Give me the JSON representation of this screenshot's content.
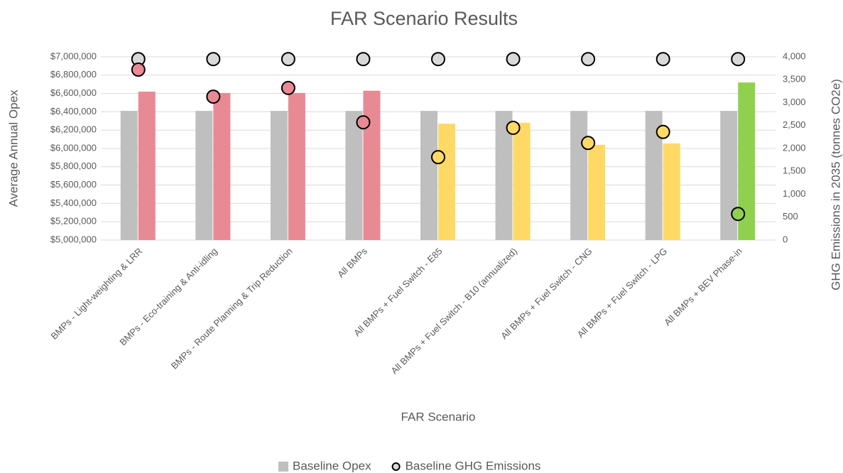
{
  "chart_data": {
    "type": "bar",
    "title": "FAR Scenario Results",
    "x_label": "FAR Scenario",
    "y_label": "Average Annual Opex",
    "y2_label": "GHG Emissions in 2035 (tonnes CO2e)",
    "categories": [
      "BMPs - Light-weighting & LRR",
      "BMPs - Eco-training & Anti-idling",
      "BMPs - Route Planning & Trip Reduction",
      "All BMPs",
      "All BMPs + Fuel Switch - E85",
      "All BMPs + Fuel Switch - B10 (annualized)",
      "All BMPs + Fuel Switch - CNG",
      "All BMPs + Fuel Switch - LPG",
      "All BMPs + BEV Phase-in"
    ],
    "series": [
      {
        "name": "Baseline Opex",
        "type": "bar",
        "color": "#bfbfbf",
        "values": [
          6410000,
          6410000,
          6410000,
          6410000,
          6410000,
          6410000,
          6410000,
          6410000,
          6410000
        ]
      },
      {
        "type": "bar",
        "colors": [
          "#e88a93",
          "#e88a93",
          "#e88a93",
          "#e88a93",
          "#ffd966",
          "#ffd966",
          "#ffd966",
          "#ffd966",
          "#8fd14f"
        ],
        "values": [
          6620000,
          6605000,
          6605000,
          6630000,
          6270000,
          6280000,
          6040000,
          6055000,
          6720000
        ]
      },
      {
        "name": "Baseline GHG Emissions",
        "type": "scatter",
        "axis": "y2",
        "color": "#d9d9d9",
        "values": [
          3950,
          3950,
          3950,
          3950,
          3950,
          3950,
          3950,
          3950,
          3950
        ]
      },
      {
        "type": "scatter",
        "axis": "y2",
        "colors": [
          "#e88a93",
          "#e88a93",
          "#e88a93",
          "#e88a93",
          "#ffd966",
          "#ffd966",
          "#ffd966",
          "#ffd966",
          "#8fd14f"
        ],
        "values": [
          3720,
          3130,
          3320,
          2570,
          1810,
          2450,
          2120,
          2360,
          570
        ]
      }
    ],
    "ylim": [
      5000000,
      7000000
    ],
    "yticks": [
      {
        "value": 5000000,
        "label": "$5,000,000"
      },
      {
        "value": 5200000,
        "label": "$5,200,000"
      },
      {
        "value": 5400000,
        "label": "$5,400,000"
      },
      {
        "value": 5600000,
        "label": "$5,600,000"
      },
      {
        "value": 5800000,
        "label": "$5,800,000"
      },
      {
        "value": 6000000,
        "label": "$6,000,000"
      },
      {
        "value": 6200000,
        "label": "$6,200,000"
      },
      {
        "value": 6400000,
        "label": "$6,400,000"
      },
      {
        "value": 6600000,
        "label": "$6,600,000"
      },
      {
        "value": 6800000,
        "label": "$6,800,000"
      },
      {
        "value": 7000000,
        "label": "$7,000,000"
      }
    ],
    "y2lim": [
      0,
      4000
    ],
    "y2ticks": [
      0,
      500,
      {
        "value": 1000,
        "label": "1,000"
      },
      {
        "value": 1500,
        "label": "1,500"
      },
      {
        "value": 2000,
        "label": "2,000"
      },
      {
        "value": 2500,
        "label": "2,500"
      },
      {
        "value": 3000,
        "label": "3,000"
      },
      {
        "value": 3500,
        "label": "3,500"
      },
      {
        "value": 4000,
        "label": "4,000"
      }
    ],
    "grid": true,
    "legend": "bottom"
  }
}
